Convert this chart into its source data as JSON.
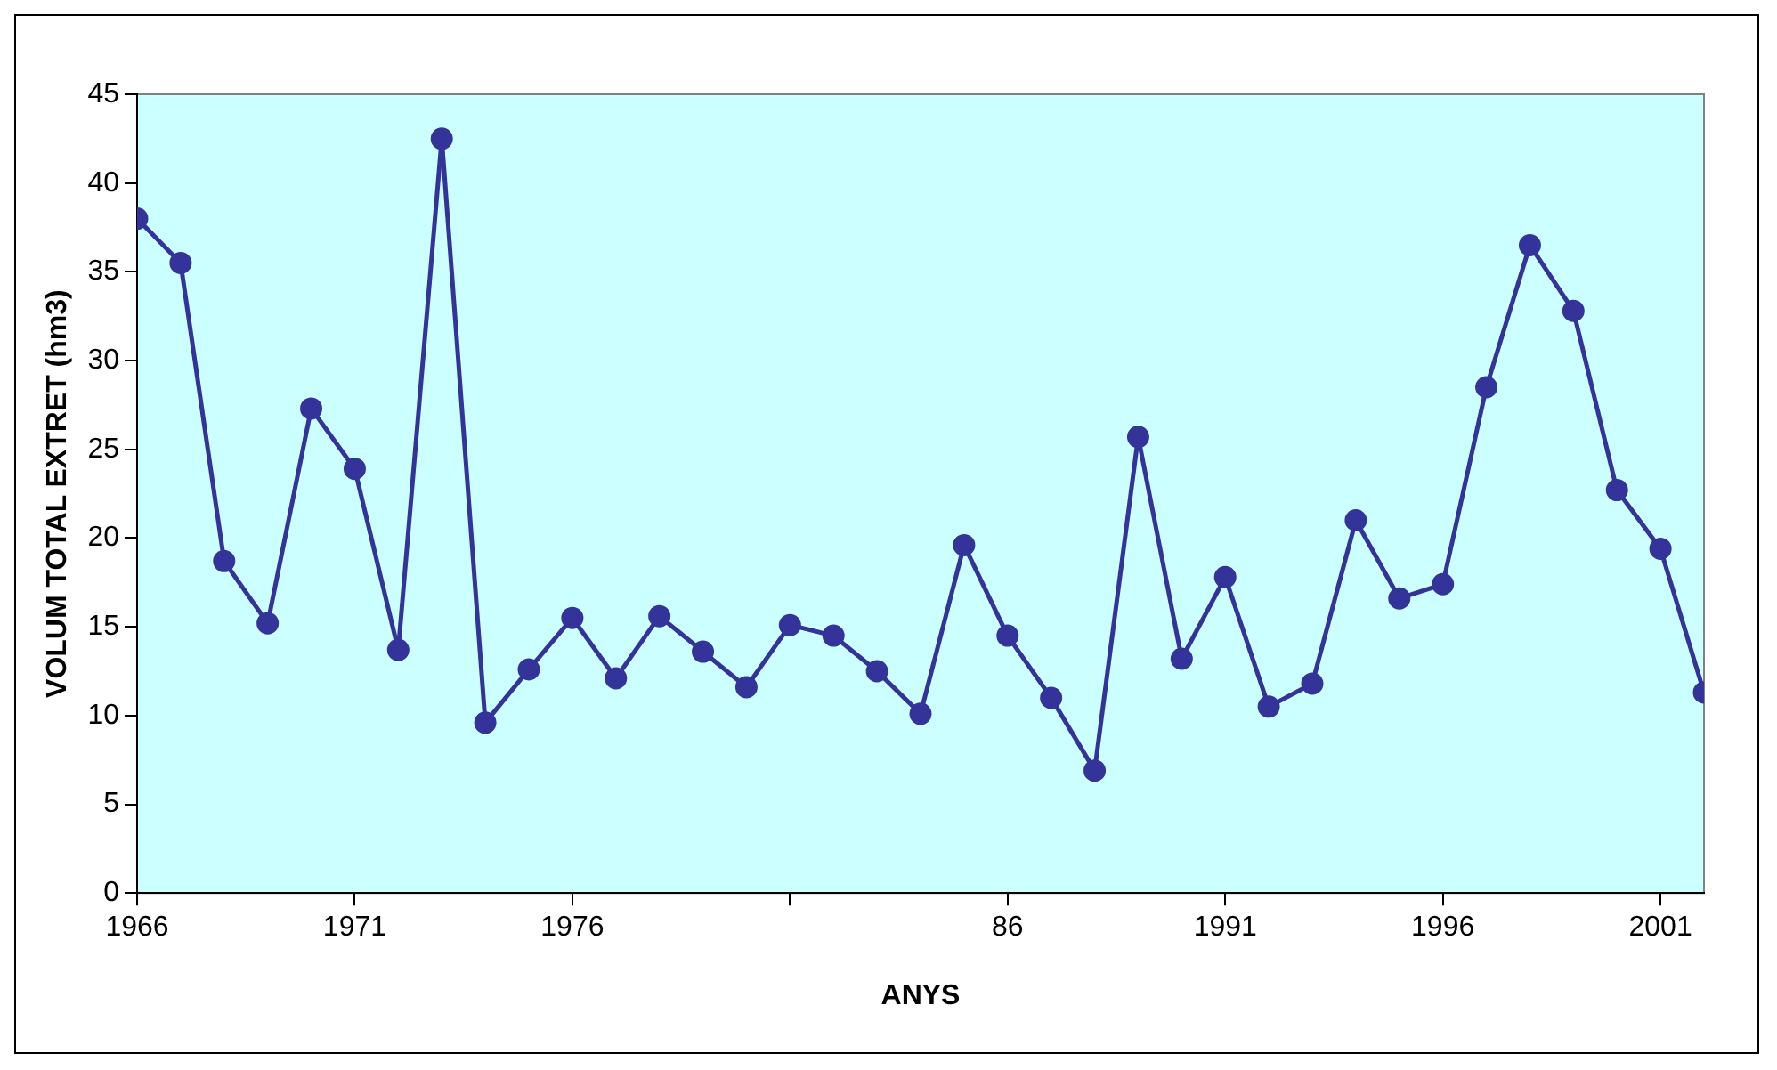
{
  "chart_data": {
    "type": "line",
    "xlabel": "ANYS",
    "ylabel": "VOLUM TOTAL EXTRET (hm3)",
    "x": [
      1966,
      1967,
      1968,
      1969,
      1970,
      1971,
      1972,
      1973,
      1974,
      1975,
      1976,
      1977,
      1978,
      1979,
      1980,
      1981,
      1982,
      1983,
      1984,
      1985,
      1986,
      1987,
      1988,
      1989,
      1990,
      1991,
      1992,
      1993,
      1994,
      1995,
      1996,
      1997,
      1998,
      1999,
      2000,
      2001,
      2002
    ],
    "series": [
      {
        "color": "#333399",
        "values": [
          38,
          35.5,
          18.7,
          15.2,
          27.3,
          23.9,
          13.7,
          42.5,
          9.6,
          12.6,
          15.5,
          12.1,
          15.6,
          13.6,
          11.6,
          15.1,
          14.5,
          12.5,
          10.1,
          19.6,
          14.5,
          11,
          6.9,
          25.7,
          13.2,
          17.8,
          10.5,
          11.8,
          21,
          16.6,
          17.4,
          28.5,
          36.5,
          32.8,
          22.7,
          19.4,
          11.3
        ]
      }
    ],
    "xlim": [
      1966,
      2002
    ],
    "xticks": [
      1966,
      1971,
      1976,
      {
        "value": 1981,
        "label": null
      },
      {
        "value": 1986,
        "label": "86"
      },
      1991,
      1996,
      2001
    ],
    "ylim": [
      0,
      45
    ],
    "yticks": [
      0,
      5,
      10,
      15,
      20,
      25,
      30,
      35,
      40,
      45
    ],
    "grid": false,
    "legend": false,
    "marker": "circle",
    "line_style": "solid"
  }
}
